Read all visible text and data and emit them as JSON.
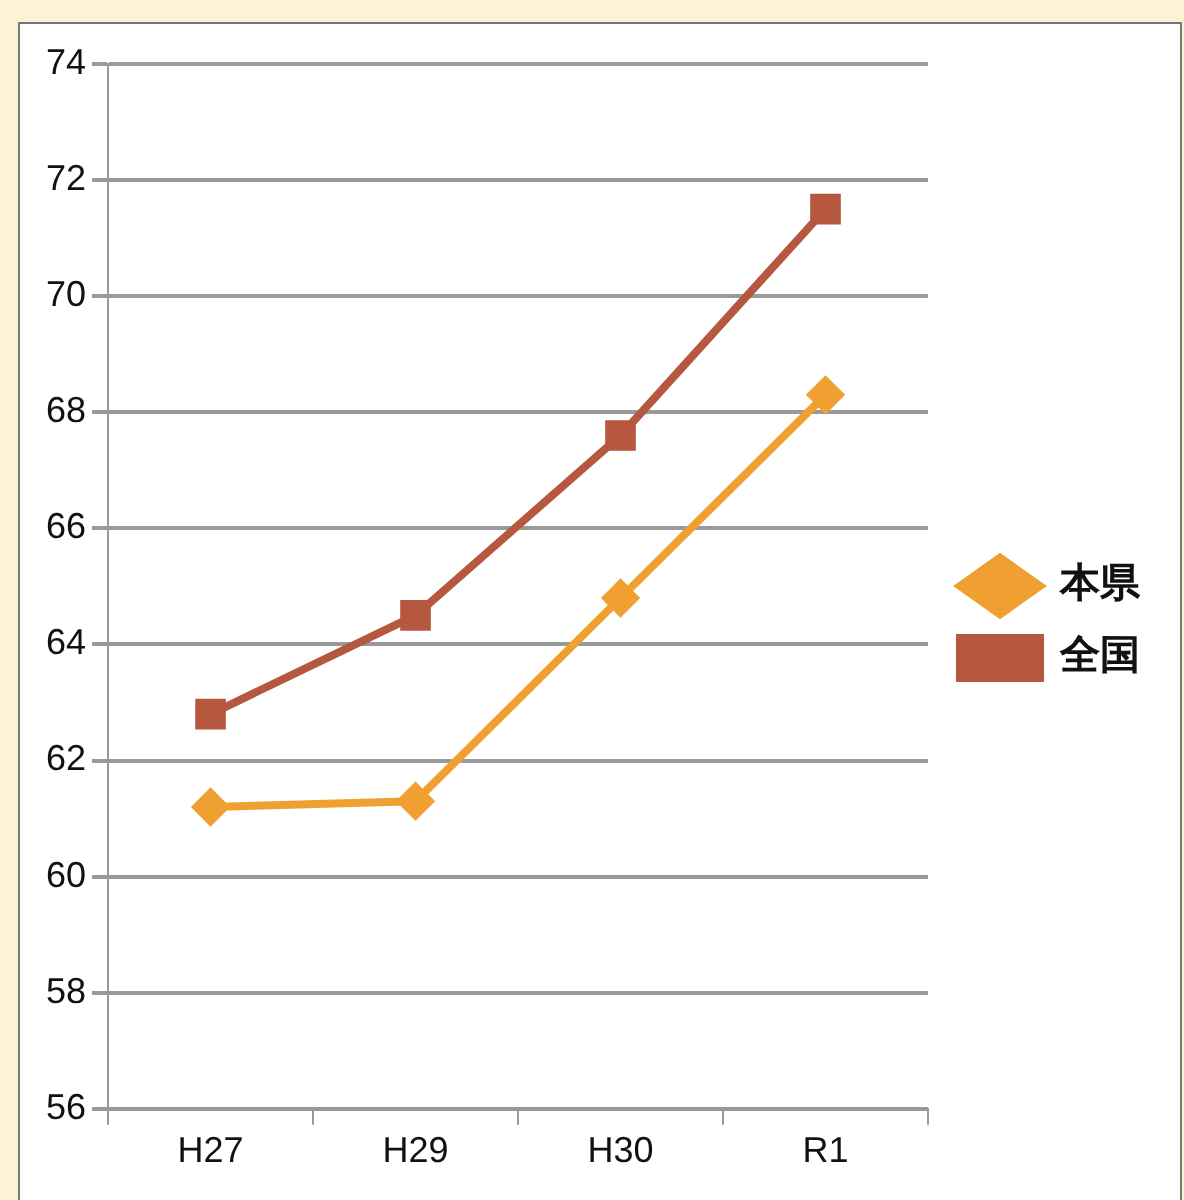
{
  "chart_data": {
    "type": "line",
    "categories": [
      "H27",
      "H29",
      "H30",
      "R1"
    ],
    "series": [
      {
        "name": "本県",
        "color": "#f0a030",
        "marker": "diamond",
        "values": [
          61.2,
          61.3,
          64.8,
          68.3
        ]
      },
      {
        "name": "全国",
        "color": "#b5583f",
        "marker": "square",
        "values": [
          62.8,
          64.5,
          67.6,
          71.5
        ]
      }
    ],
    "ylim": [
      56,
      74
    ],
    "yticks": [
      56,
      58,
      60,
      62,
      64,
      66,
      68,
      70,
      72,
      74
    ],
    "grid": "y",
    "legend": "right",
    "line_style": "solid"
  }
}
